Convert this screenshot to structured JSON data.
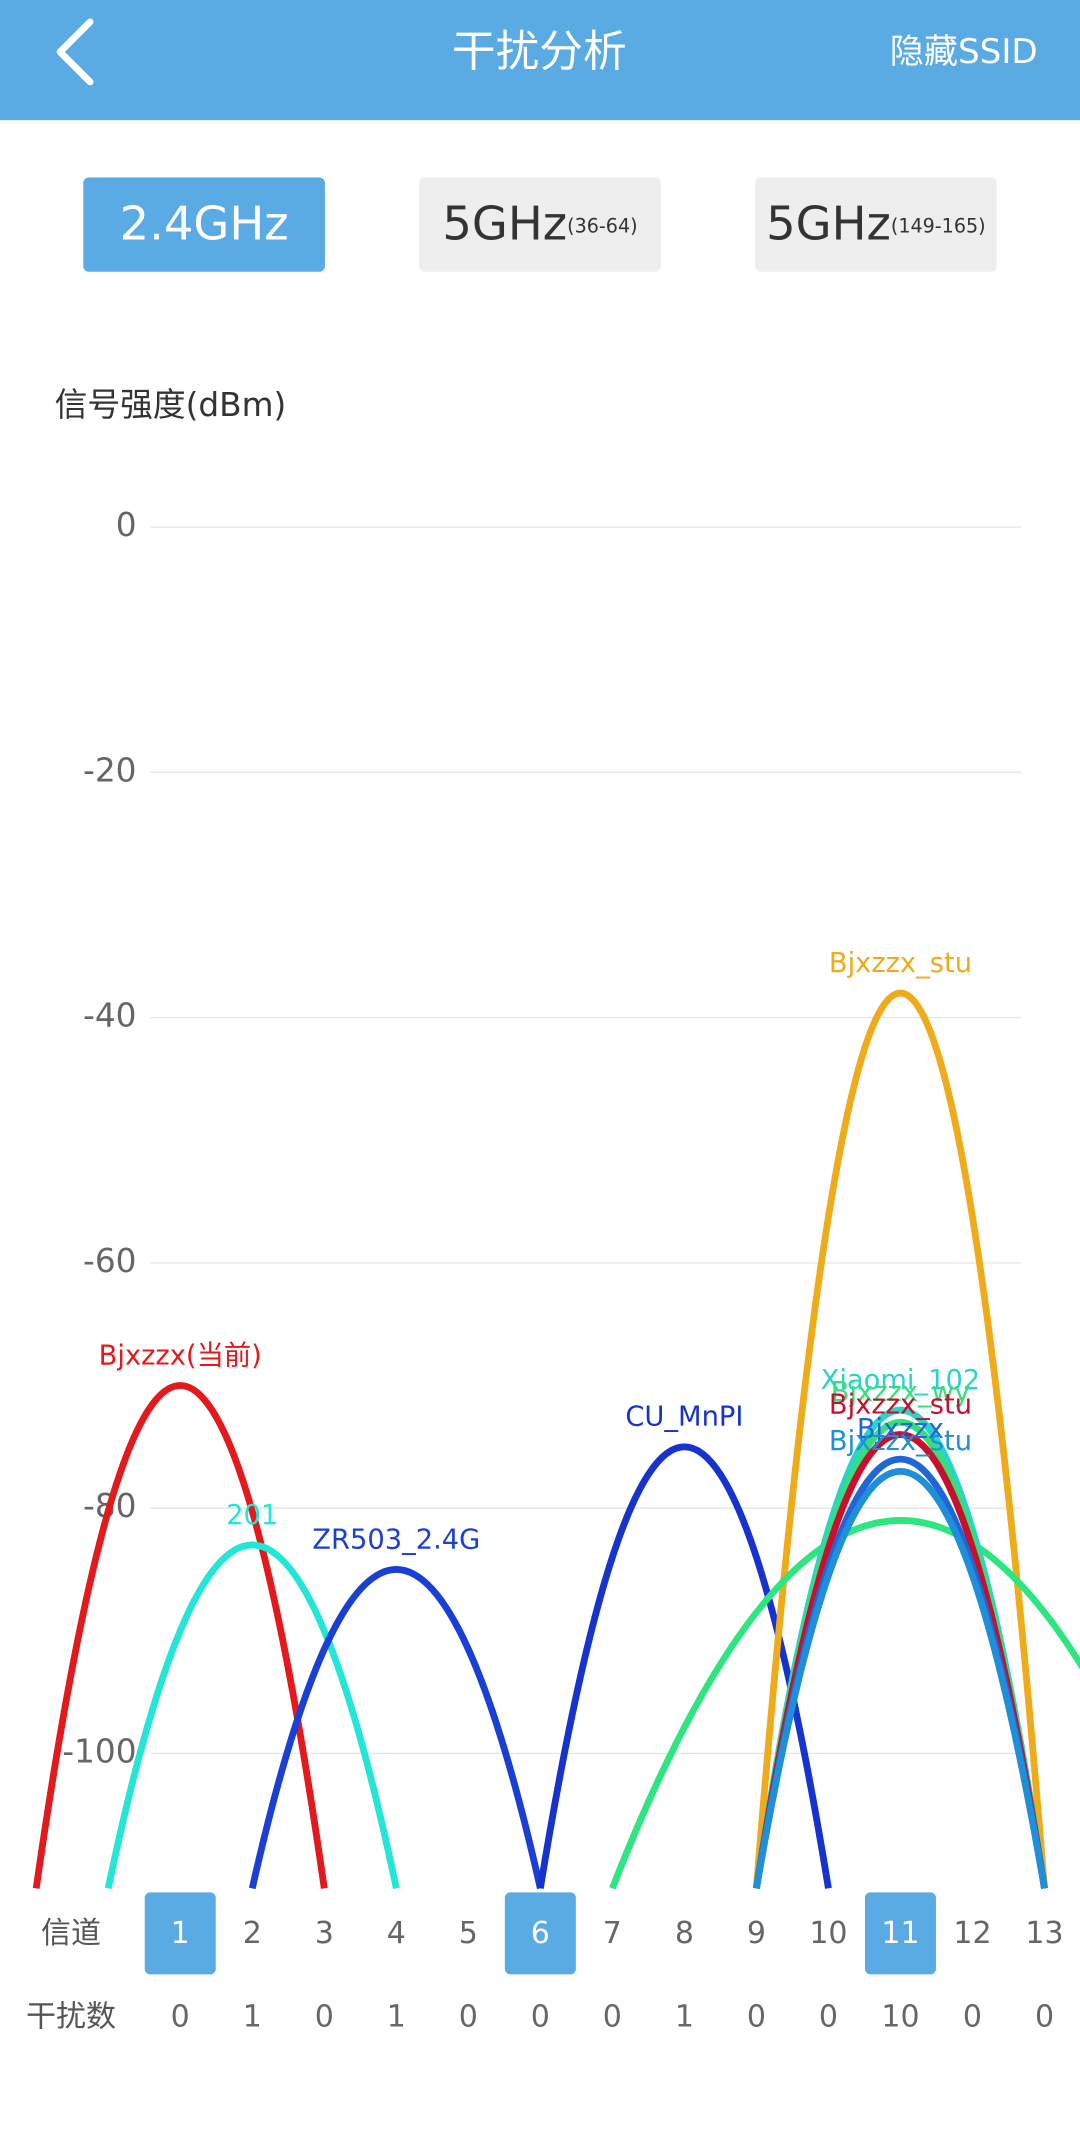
{
  "header": {
    "title": "干扰分析",
    "action": "隐藏SSID"
  },
  "tabs": [
    {
      "label": "2.4GHz",
      "sub": null,
      "selected": true
    },
    {
      "label": "5GHz",
      "sub": "(36-64)",
      "selected": false
    },
    {
      "label": "5GHz",
      "sub": "(149-165)",
      "selected": false
    }
  ],
  "chart_data": {
    "type": "wifi-channel",
    "y_label": "信号强度(dBm)",
    "ylim": [
      -111,
      0
    ],
    "yticks": [
      0,
      -20,
      -40,
      -60,
      -80,
      -100
    ],
    "grid": true,
    "channel_label": "信道",
    "interference_label": "干扰数",
    "channels": [
      1,
      2,
      3,
      4,
      5,
      6,
      7,
      8,
      9,
      10,
      11,
      12,
      13
    ],
    "interference": [
      0,
      1,
      0,
      1,
      0,
      0,
      0,
      1,
      0,
      0,
      10,
      0,
      0
    ],
    "highlight_channels": [
      1,
      6,
      11
    ],
    "networks": [
      {
        "name": "Bjxzzx(当前)",
        "channel": 1,
        "signal": -70,
        "bandwidth": 20,
        "color": "#e3191b"
      },
      {
        "name": "201",
        "channel": 2,
        "signal": -83,
        "bandwidth": 20,
        "color": "#22e6d6"
      },
      {
        "name": "ZR503_2.4G",
        "channel": 4,
        "signal": -85,
        "bandwidth": 20,
        "color": "#1a3fd6"
      },
      {
        "name": "CU_MnPI",
        "channel": 8,
        "signal": -75,
        "bandwidth": 20,
        "color": "#1632cf"
      },
      {
        "name": "Bjxzzx_stu",
        "channel": 11,
        "signal": -38,
        "bandwidth": 20,
        "color": "#f0ab1a"
      },
      {
        "name": null,
        "channel": 11,
        "signal": -81,
        "bandwidth": 40,
        "color": "#2ee67f"
      },
      {
        "name": "Xiaomi_102",
        "channel": 11,
        "signal": -72,
        "bandwidth": 20,
        "color": "#2bd3c8"
      },
      {
        "name": "Bjxzzx_wy",
        "channel": 11,
        "signal": -73,
        "bandwidth": 20,
        "color": "#35e07a"
      },
      {
        "name": "Bjxzzx_stu",
        "channel": 11,
        "signal": -74,
        "bandwidth": 20,
        "color": "#c8102e"
      },
      {
        "name": "Bjxzzx",
        "channel": 11,
        "signal": -76,
        "bandwidth": 20,
        "color": "#2066d8"
      },
      {
        "name": "Bjxzzx_stu",
        "channel": 11,
        "signal": -77,
        "bandwidth": 20,
        "color": "#1e8fd8"
      }
    ]
  }
}
